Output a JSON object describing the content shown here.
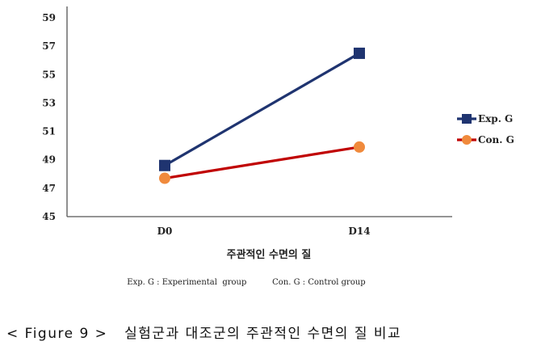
{
  "chart_data": {
    "type": "line",
    "categories": [
      "D0",
      "D14"
    ],
    "series": [
      {
        "name": "Exp. G",
        "values": [
          48.6,
          56.5
        ],
        "color": "#1f3470",
        "marker": "square"
      },
      {
        "name": "Con. G",
        "values": [
          47.7,
          49.9
        ],
        "color": "#c00000",
        "marker": "circle",
        "marker_color": "#f08a3c"
      }
    ],
    "ylim": [
      45,
      59
    ],
    "yticks": [
      45,
      47,
      49,
      51,
      53,
      55,
      57,
      59
    ],
    "xlabel": "주관적인 수면의 질",
    "ylabel": "",
    "grid": false,
    "legend": "right"
  },
  "note": "Exp. G : Experimental  group          Con. G : Control group",
  "caption": "< Figure 9 >   실험군과 대조군의 주관적인 수면의 질 비교"
}
